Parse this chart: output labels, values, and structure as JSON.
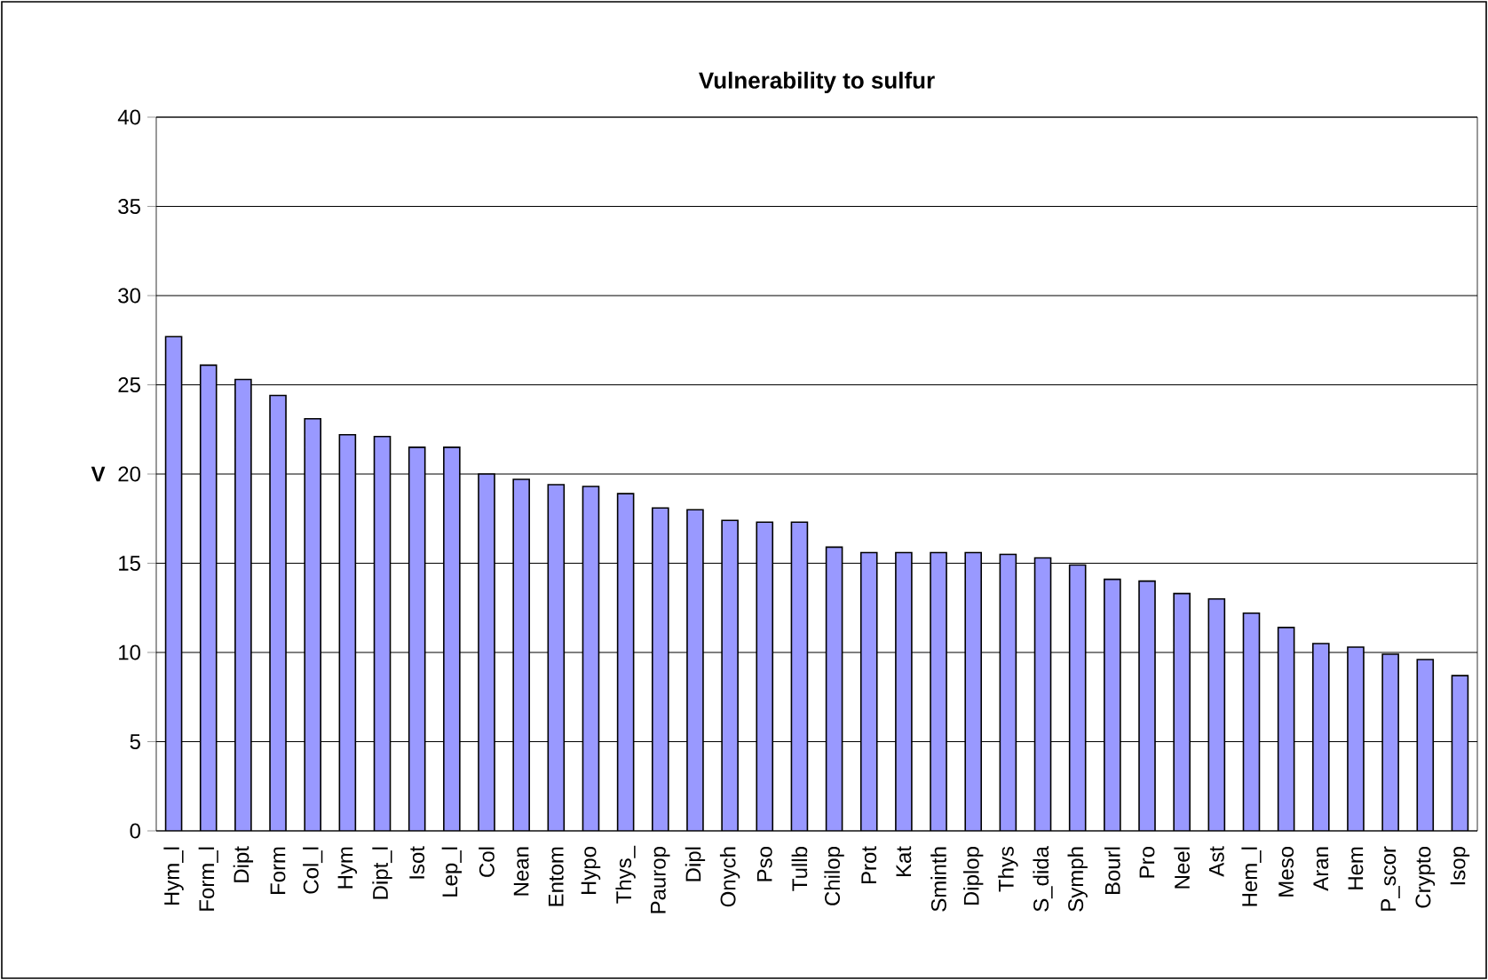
{
  "chart_data": {
    "type": "bar",
    "title": "Vulnerability to sulfur",
    "ylabel": "V",
    "categories": [
      "Hym_l",
      "Form_l",
      "Dipt",
      "Form",
      "Col_l",
      "Hym",
      "Dipt_l",
      "Isot",
      "Lep_l",
      "Col",
      "Nean",
      "Entom",
      "Hypo",
      "Thys_",
      "Paurop",
      "Dipl",
      "Onych",
      "Pso",
      "Tullb",
      "Chilop",
      "Prot",
      "Kat",
      "Sminth",
      "Diplop",
      "Thys",
      "S_dida",
      "Symph",
      "Bourl",
      "Pro",
      "Neel",
      "Ast",
      "Hem_l",
      "Meso",
      "Aran",
      "Hem",
      "P_scor",
      "Crypto",
      "Isop"
    ],
    "values": [
      27.7,
      26.1,
      25.3,
      24.4,
      23.1,
      22.2,
      22.1,
      21.5,
      21.5,
      20.0,
      19.7,
      19.4,
      19.3,
      18.9,
      18.1,
      18.0,
      17.4,
      17.3,
      17.3,
      15.9,
      15.6,
      15.6,
      15.6,
      15.6,
      15.5,
      15.3,
      14.9,
      14.1,
      14.0,
      13.3,
      13.0,
      12.2,
      11.4,
      10.5,
      10.3,
      9.9,
      9.6,
      8.7
    ],
    "color": "#9999ff",
    "ylim": [
      0,
      40
    ],
    "yticks": [
      0,
      5,
      10,
      15,
      20,
      25,
      30,
      35,
      40
    ],
    "grid": "y"
  }
}
